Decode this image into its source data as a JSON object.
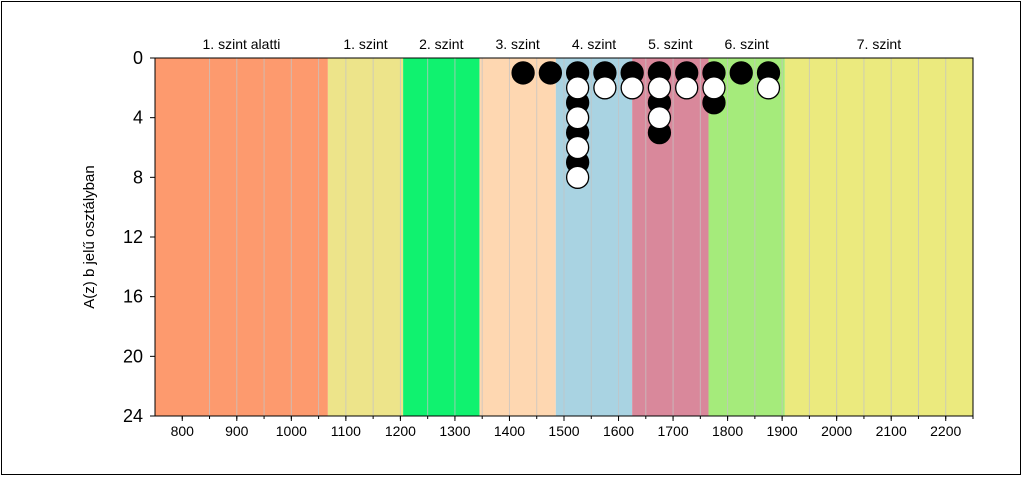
{
  "chart_data": {
    "type": "scatter",
    "title": "",
    "xlabel": "",
    "ylabel": "A(z) b jelű osztályban",
    "xlim": [
      750,
      2250
    ],
    "ylim": [
      24,
      0
    ],
    "x_ticks": [
      800,
      900,
      1000,
      1100,
      1200,
      1300,
      1400,
      1500,
      1600,
      1700,
      1800,
      1900,
      2000,
      2100,
      2200
    ],
    "x_tick_labels": [
      "800",
      "900",
      "1000",
      "1100",
      "1200",
      "1300",
      "1400",
      "1500",
      "1600",
      "1700",
      "1800",
      "1900",
      "2000",
      "2100",
      "2200"
    ],
    "y_ticks": [
      0,
      4,
      8,
      12,
      16,
      20,
      24
    ],
    "y_tick_labels": [
      "0",
      "4",
      "8",
      "12",
      "16",
      "20",
      "24"
    ],
    "grid": "vertical",
    "bands": [
      {
        "label": "1. szint alatti",
        "from": 750,
        "to": 1067,
        "color": "#fd9a6e"
      },
      {
        "label": "1. szint",
        "from": 1067,
        "to": 1205,
        "color": "#ede48a"
      },
      {
        "label": "2. szint",
        "from": 1205,
        "to": 1345,
        "color": "#10f26f"
      },
      {
        "label": "3. szint",
        "from": 1345,
        "to": 1485,
        "color": "#fed7b1"
      },
      {
        "label": "4. szint",
        "from": 1485,
        "to": 1625,
        "color": "#a9d3e2"
      },
      {
        "label": "5. szint",
        "from": 1625,
        "to": 1765,
        "color": "#d9889b"
      },
      {
        "label": "6. szint",
        "from": 1765,
        "to": 1905,
        "color": "#a5eb7b"
      },
      {
        "label": "7. szint",
        "from": 1905,
        "to": 2250,
        "color": "#ebea7e"
      }
    ],
    "series": [
      {
        "marker": "filled",
        "color": "#000000",
        "points": [
          [
            1425,
            1
          ],
          [
            1475,
            1
          ],
          [
            1525,
            1
          ],
          [
            1525,
            3
          ],
          [
            1525,
            5
          ],
          [
            1525,
            7
          ],
          [
            1575,
            1
          ],
          [
            1625,
            1
          ],
          [
            1675,
            1
          ],
          [
            1675,
            3
          ],
          [
            1675,
            5
          ],
          [
            1725,
            1
          ],
          [
            1775,
            1
          ],
          [
            1775,
            3
          ],
          [
            1825,
            1
          ],
          [
            1875,
            1
          ]
        ]
      },
      {
        "marker": "hollow",
        "color": "#ffffff",
        "points": [
          [
            1525,
            2
          ],
          [
            1525,
            4
          ],
          [
            1525,
            6
          ],
          [
            1525,
            8
          ],
          [
            1575,
            2
          ],
          [
            1625,
            2
          ],
          [
            1675,
            2
          ],
          [
            1675,
            4
          ],
          [
            1725,
            2
          ],
          [
            1775,
            2
          ],
          [
            1875,
            2
          ]
        ]
      }
    ]
  }
}
